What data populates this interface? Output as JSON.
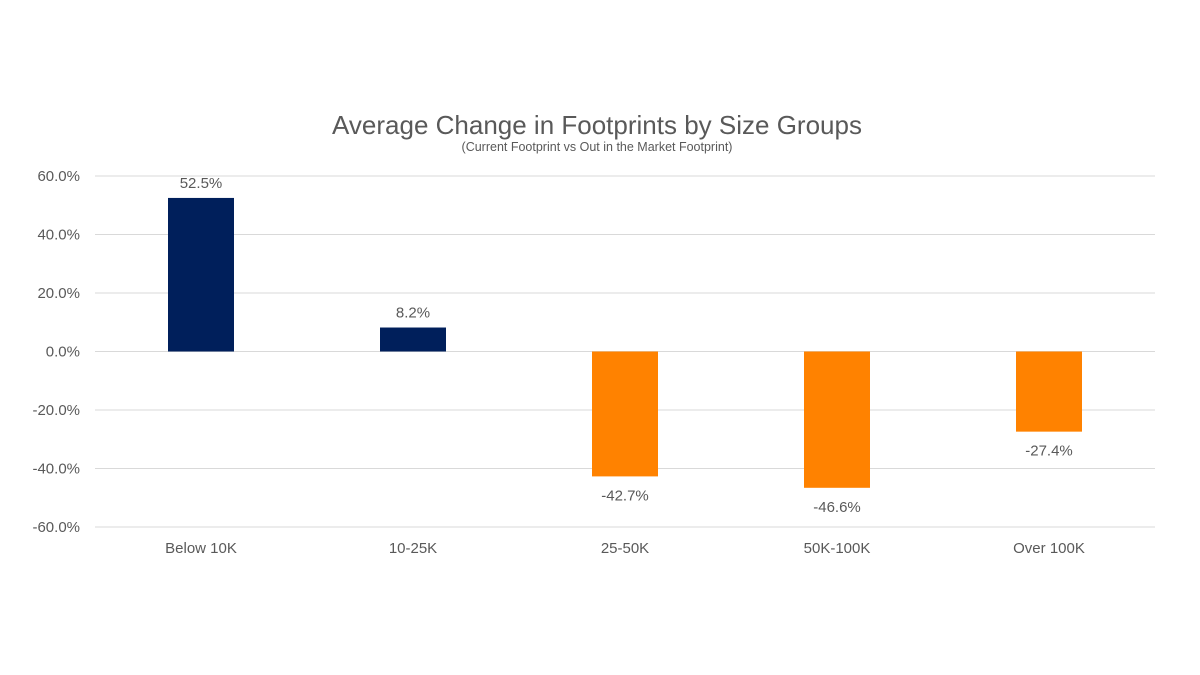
{
  "chart_data": {
    "type": "bar",
    "title": "Average Change in Footprints by Size Groups",
    "subtitle": "(Current Footprint vs Out in the Market Footprint)",
    "categories": [
      "Below 10K",
      "10-25K",
      "25-50K",
      "50K-100K",
      "Over 100K"
    ],
    "values": [
      52.5,
      8.2,
      -42.7,
      -46.6,
      -27.4
    ],
    "data_labels": [
      "52.5%",
      "8.2%",
      "-42.7%",
      "-46.6%",
      "-27.4%"
    ],
    "xlabel": "",
    "ylabel": "",
    "ylim": [
      -60,
      60
    ],
    "yticks": [
      60,
      40,
      20,
      0,
      -20,
      -40,
      -60
    ],
    "ytick_labels": [
      "60.0%",
      "40.0%",
      "20.0%",
      "0.0%",
      "-20.0%",
      "-40.0%",
      "-60.0%"
    ],
    "grid": true,
    "legend": "none",
    "colors": {
      "positive": "#001f5b",
      "negative": "#ff8200",
      "gridline": "#d9d9d9",
      "text": "#595959"
    }
  }
}
